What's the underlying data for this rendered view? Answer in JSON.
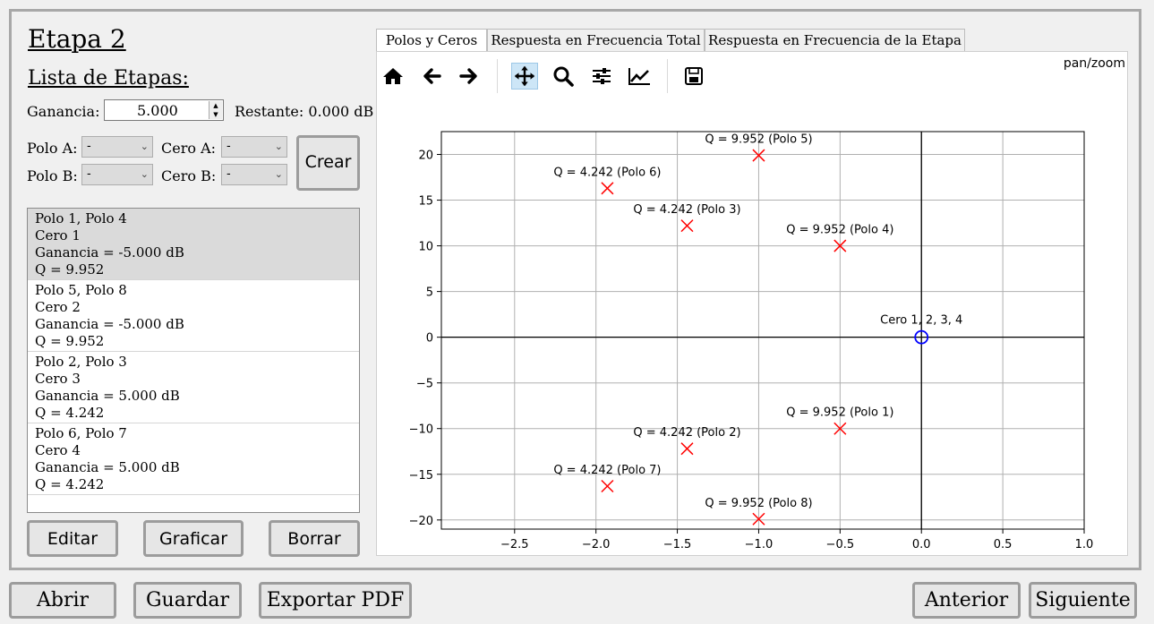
{
  "stage": {
    "title": "Etapa 2",
    "list_title": "Lista de Etapas:",
    "gain_label": "Ganancia:",
    "gain_value": "5.000",
    "remaining_label": "Restante: 0.000 dB",
    "polo_a_label": "Polo A:",
    "polo_b_label": "Polo B:",
    "cero_a_label": "Cero A:",
    "cero_b_label": "Cero B:",
    "polo_a_value": "-",
    "polo_b_value": "-",
    "cero_a_value": "-",
    "cero_b_value": "-",
    "create_label": "Crear"
  },
  "stages_list": [
    {
      "poles": "Polo 1, Polo 4",
      "zero": "Cero 1",
      "gain": "Ganancia = -5.000 dB",
      "q": "Q = 9.952",
      "selected": true
    },
    {
      "poles": "Polo 5, Polo 8",
      "zero": "Cero 2",
      "gain": "Ganancia = -5.000 dB",
      "q": "Q = 9.952",
      "selected": false
    },
    {
      "poles": "Polo 2, Polo 3",
      "zero": "Cero 3",
      "gain": "Ganancia = 5.000 dB",
      "q": "Q = 4.242",
      "selected": false
    },
    {
      "poles": "Polo 6, Polo 7",
      "zero": "Cero 4",
      "gain": "Ganancia = 5.000 dB",
      "q": "Q = 4.242",
      "selected": false
    }
  ],
  "list_buttons": {
    "edit": "Editar",
    "plot": "Graficar",
    "delete": "Borrar"
  },
  "tabs": [
    "Polos y Ceros",
    "Respuesta en Frecuencia Total",
    "Respuesta en Frecuencia de la Etapa"
  ],
  "toolbar": {
    "mode_text": "pan/zoom",
    "icons": [
      "home-icon",
      "back-arrow-icon",
      "forward-arrow-icon",
      "pan-move-icon",
      "zoom-magnifier-icon",
      "subplots-sliders-icon",
      "edit-axis-line-icon",
      "save-disk-icon"
    ]
  },
  "bottom_buttons": {
    "open": "Abrir",
    "save": "Guardar",
    "export": "Exportar PDF",
    "previous": "Anterior",
    "next": "Siguiente"
  },
  "colors": {
    "pole": "#ff0000",
    "zero": "#0000ff",
    "grid": "#b0b0b0"
  },
  "chart_data": {
    "type": "scatter",
    "xlim": [
      -2.95,
      1.0
    ],
    "ylim": [
      -21,
      22.5
    ],
    "xticks": [
      -2.5,
      -2.0,
      -1.5,
      -1.0,
      -0.5,
      0.0,
      0.5,
      1.0
    ],
    "xtick_labels": [
      "−2.5",
      "−2.0",
      "−1.5",
      "−1.0",
      "−0.5",
      "0.0",
      "0.5",
      "1.0"
    ],
    "yticks": [
      20,
      15,
      10,
      5,
      0,
      -5,
      -10,
      -15,
      -20
    ],
    "ytick_labels": [
      "20",
      "15",
      "10",
      "5",
      "0",
      "−5",
      "−10",
      "−15",
      "−20"
    ],
    "grid": true,
    "poles": [
      {
        "x": -1.0,
        "y": 19.9,
        "label": "Q = 9.952 (Polo 5)"
      },
      {
        "x": -1.93,
        "y": 16.3,
        "label": "Q = 4.242 (Polo 6)"
      },
      {
        "x": -1.44,
        "y": 12.2,
        "label": "Q = 4.242 (Polo 3)"
      },
      {
        "x": -0.5,
        "y": 10.0,
        "label": "Q = 9.952 (Polo 4)"
      },
      {
        "x": -0.5,
        "y": -10.0,
        "label": "Q = 9.952 (Polo 1)"
      },
      {
        "x": -1.44,
        "y": -12.2,
        "label": "Q = 4.242 (Polo 2)"
      },
      {
        "x": -1.93,
        "y": -16.3,
        "label": "Q = 4.242 (Polo 7)"
      },
      {
        "x": -1.0,
        "y": -19.9,
        "label": "Q = 9.952 (Polo 8)"
      }
    ],
    "zeros": [
      {
        "x": 0.0,
        "y": 0.0,
        "label": "Cero 1, 2, 3, 4"
      }
    ]
  }
}
